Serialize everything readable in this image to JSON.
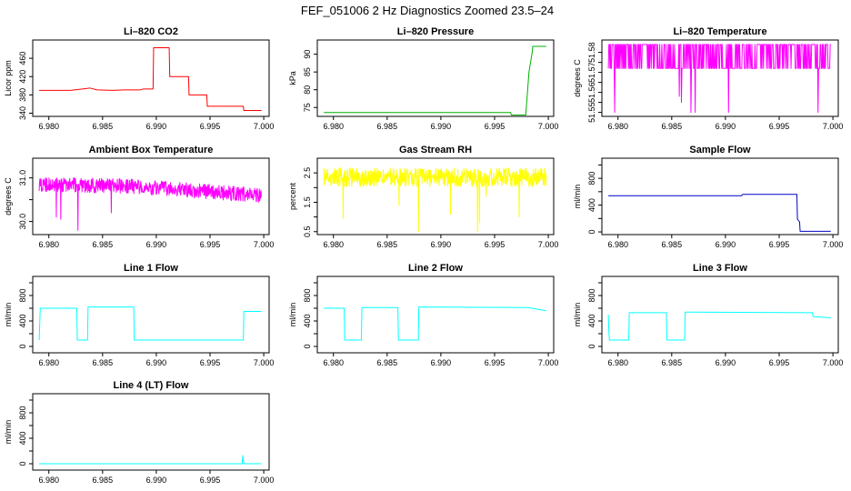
{
  "title": "FEF_051006  2 Hz Diagnostics Zoomed 23.5–24",
  "chart_data": [
    {
      "type": "line",
      "title": "Li–820 CO2",
      "xlabel": "",
      "ylabel": "Licor ppm",
      "color": "#ff0000",
      "xlim": [
        6.9785,
        7.0005
      ],
      "ylim": [
        333,
        500
      ],
      "xticks": [
        6.98,
        6.985,
        6.99,
        6.995,
        7.0
      ],
      "xticklabels": [
        "6.980",
        "6.985",
        "6.990",
        "6.995",
        "7.000"
      ],
      "yticks": [
        340,
        380,
        420,
        460
      ],
      "yticklabels": [
        "340",
        "380",
        "420",
        "460"
      ],
      "series": [
        {
          "x": [
            6.9791,
            6.982,
            6.9835,
            6.9838,
            6.9845,
            6.986,
            6.987,
            6.9885,
            6.9888,
            6.9897,
            6.98975,
            6.9912,
            6.99125,
            6.993,
            6.99305,
            6.9947,
            6.99475,
            6.9981,
            6.99815,
            6.9998
          ],
          "y": [
            390,
            390,
            394,
            395,
            391,
            390,
            391,
            391,
            393,
            393,
            483,
            483,
            420,
            420,
            380,
            380,
            355,
            355,
            346,
            346
          ]
        }
      ]
    },
    {
      "type": "line",
      "title": "Li–820 Pressure",
      "xlabel": "",
      "ylabel": "kPa",
      "color": "#00b000",
      "xlim": [
        6.9785,
        7.0005
      ],
      "ylim": [
        72.5,
        94
      ],
      "xticks": [
        6.98,
        6.985,
        6.99,
        6.995,
        7.0
      ],
      "xticklabels": [
        "6.980",
        "6.985",
        "6.990",
        "6.995",
        "7.000"
      ],
      "yticks": [
        75,
        80,
        85,
        90
      ],
      "yticklabels": [
        "75",
        "80",
        "85",
        "90"
      ],
      "series": [
        {
          "x": [
            6.9791,
            6.9965,
            6.99655,
            6.9979,
            6.9982,
            6.9985,
            6.99855,
            6.9998
          ],
          "y": [
            73.6,
            73.6,
            72.9,
            72.9,
            85,
            90.5,
            92.2,
            92.2
          ]
        }
      ]
    },
    {
      "type": "line",
      "title": "Li–820 Temperature",
      "xlabel": "",
      "ylabel": "degrees C",
      "color": "#ff00ff",
      "xlim": [
        6.9785,
        7.0005
      ],
      "ylim": [
        51.548,
        51.5862
      ],
      "xticks": [
        6.98,
        6.985,
        6.99,
        6.995,
        7.0
      ],
      "xticklabels": [
        "6.980",
        "6.985",
        "6.990",
        "6.995",
        "7.000"
      ],
      "yticks": [
        51.55,
        51.555,
        51.56,
        51.565,
        51.57,
        51.575,
        51.58
      ],
      "yticklabels": [
        "51.55",
        "",
        "51.56",
        "",
        "51.57",
        "",
        "51.58"
      ],
      "series": [
        {
          "pattern": "two-level",
          "x_start": 6.9791,
          "x_end": 6.9998,
          "base": 51.572,
          "high": 51.584,
          "dips_x": [
            6.9797,
            6.9857,
            6.9859,
            6.9868,
            6.9872,
            6.9903,
            6.9986
          ],
          "dips_y": [
            51.55,
            51.558,
            51.555,
            51.55,
            51.55,
            51.55,
            51.55
          ]
        }
      ]
    },
    {
      "type": "line",
      "title": "Ambient Box Temperature",
      "xlabel": "",
      "ylabel": "degrees C",
      "color": "#ff00ff",
      "xlim": [
        6.9785,
        7.0005
      ],
      "ylim": [
        29.7,
        31.45
      ],
      "xticks": [
        6.98,
        6.985,
        6.99,
        6.995,
        7.0
      ],
      "xticklabels": [
        "6.980",
        "6.985",
        "6.990",
        "6.995",
        "7.000"
      ],
      "yticks": [
        30.0,
        30.5,
        31.0
      ],
      "yticklabels": [
        "30.0",
        "",
        "31.0"
      ],
      "series": [
        {
          "pattern": "noisy",
          "x_start": 6.9791,
          "x_end": 6.9998,
          "level_x": [
            6.9791,
            6.988,
            6.9998
          ],
          "level_y": [
            30.85,
            30.8,
            30.6
          ],
          "noise": 0.17,
          "spikes_x": [
            6.9807,
            6.9811,
            6.9827,
            6.9858
          ],
          "spikes_y": [
            30.1,
            30.05,
            29.8,
            30.2
          ]
        }
      ]
    },
    {
      "type": "line",
      "title": "Gas Stream RH",
      "xlabel": "",
      "ylabel": "percent",
      "color": "#ffff00",
      "xlim": [
        6.9785,
        7.0005
      ],
      "ylim": [
        0.4,
        3.0
      ],
      "xticks": [
        6.98,
        6.985,
        6.99,
        6.995,
        7.0
      ],
      "xticklabels": [
        "6.980",
        "6.985",
        "6.990",
        "6.995",
        "7.000"
      ],
      "yticks": [
        0.5,
        1.0,
        1.5,
        2.0,
        2.5
      ],
      "yticklabels": [
        "0.5",
        "",
        "1.5",
        "",
        "2.5"
      ],
      "series": [
        {
          "pattern": "noisy",
          "x_start": 6.9791,
          "x_end": 6.9998,
          "level_x": [
            6.9791,
            6.9998
          ],
          "level_y": [
            2.35,
            2.35
          ],
          "noise": 0.32,
          "spikes_x": [
            6.9809,
            6.9861,
            6.9879,
            6.9909,
            6.9934,
            6.9936,
            6.9942,
            6.9973
          ],
          "spikes_y": [
            0.95,
            1.4,
            0.5,
            1.1,
            0.5,
            0.8,
            1.7,
            1.0
          ]
        }
      ]
    },
    {
      "type": "line",
      "title": "Sample Flow",
      "xlabel": "",
      "ylabel": "ml/min",
      "color": "#0000c8",
      "xlim": [
        6.9785,
        7.0005
      ],
      "ylim": [
        -40,
        1100
      ],
      "xticks": [
        6.98,
        6.985,
        6.99,
        6.995,
        7.0
      ],
      "xticklabels": [
        "6.980",
        "6.985",
        "6.990",
        "6.995",
        "7.000"
      ],
      "yticks": [
        0,
        200,
        400,
        600,
        800,
        1000
      ],
      "yticklabels": [
        "0",
        "",
        "400",
        "",
        "800",
        ""
      ],
      "series": [
        {
          "x": [
            6.9791,
            6.9915,
            6.9916,
            6.99665,
            6.9967,
            6.9969,
            6.99695,
            6.9998
          ],
          "y": [
            540,
            540,
            560,
            560,
            190,
            150,
            10,
            10
          ]
        }
      ]
    },
    {
      "type": "line",
      "title": "Line 1 Flow",
      "xlabel": "",
      "ylabel": "ml/min",
      "color": "#00ffff",
      "xlim": [
        6.9785,
        7.0005
      ],
      "ylim": [
        -100,
        1100
      ],
      "xticks": [
        6.98,
        6.985,
        6.99,
        6.995,
        7.0
      ],
      "xticklabels": [
        "6.980",
        "6.985",
        "6.990",
        "6.995",
        "7.000"
      ],
      "yticks": [
        0,
        200,
        400,
        600,
        800,
        1000
      ],
      "yticklabels": [
        "0",
        "",
        "400",
        "",
        "800",
        ""
      ],
      "series": [
        {
          "x": [
            6.9791,
            6.9792,
            6.9826,
            6.98265,
            6.9836,
            6.98365,
            6.9879,
            6.98795,
            6.9981,
            6.99815,
            6.9998
          ],
          "y": [
            100,
            600,
            600,
            100,
            100,
            620,
            620,
            100,
            100,
            550,
            550
          ]
        }
      ]
    },
    {
      "type": "line",
      "title": "Line 2 Flow",
      "xlabel": "",
      "ylabel": "ml/min",
      "color": "#00ffff",
      "xlim": [
        6.9785,
        7.0005
      ],
      "ylim": [
        -100,
        1100
      ],
      "xticks": [
        6.98,
        6.985,
        6.99,
        6.995,
        7.0
      ],
      "xticklabels": [
        "6.980",
        "6.985",
        "6.990",
        "6.995",
        "7.000"
      ],
      "yticks": [
        0,
        200,
        400,
        600,
        800,
        1000
      ],
      "yticklabels": [
        "0",
        "",
        "400",
        "",
        "800",
        ""
      ],
      "series": [
        {
          "x": [
            6.9791,
            6.981,
            6.98105,
            6.9826,
            6.98265,
            6.986,
            6.98605,
            6.9879,
            6.98795,
            6.9981,
            6.9998
          ],
          "y": [
            600,
            600,
            100,
            100,
            610,
            610,
            100,
            100,
            620,
            610,
            560
          ]
        }
      ]
    },
    {
      "type": "line",
      "title": "Line 3 Flow",
      "xlabel": "",
      "ylabel": "ml/min",
      "color": "#00ffff",
      "xlim": [
        6.9785,
        7.0005
      ],
      "ylim": [
        -100,
        1100
      ],
      "xticks": [
        6.98,
        6.985,
        6.99,
        6.995,
        7.0
      ],
      "xticklabels": [
        "6.980",
        "6.985",
        "6.990",
        "6.995",
        "7.000"
      ],
      "yticks": [
        0,
        200,
        400,
        600,
        800,
        1000
      ],
      "yticklabels": [
        "0",
        "",
        "400",
        "",
        "800",
        ""
      ],
      "series": [
        {
          "x": [
            6.9791,
            6.97915,
            6.9792,
            6.981,
            6.98105,
            6.9845,
            6.98455,
            6.9862,
            6.98625,
            6.9981,
            6.99815,
            6.9998
          ],
          "y": [
            500,
            250,
            100,
            100,
            530,
            530,
            100,
            100,
            540,
            530,
            470,
            450
          ]
        }
      ]
    },
    {
      "type": "line",
      "title": "Line 4 (LT) Flow",
      "xlabel": "",
      "ylabel": "ml/min",
      "color": "#00ffff",
      "xlim": [
        6.9785,
        7.0005
      ],
      "ylim": [
        -100,
        1100
      ],
      "xticks": [
        6.98,
        6.985,
        6.99,
        6.995,
        7.0
      ],
      "xticklabels": [
        "6.980",
        "6.985",
        "6.990",
        "6.995",
        "7.000"
      ],
      "yticks": [
        0,
        200,
        400,
        600,
        800,
        1000
      ],
      "yticklabels": [
        "0",
        "",
        "400",
        "",
        "800",
        ""
      ],
      "series": [
        {
          "x": [
            6.9791,
            6.998,
            6.99805,
            6.9981,
            6.99815,
            6.9998
          ],
          "y": [
            0,
            0,
            130,
            60,
            0,
            0
          ]
        }
      ]
    }
  ]
}
